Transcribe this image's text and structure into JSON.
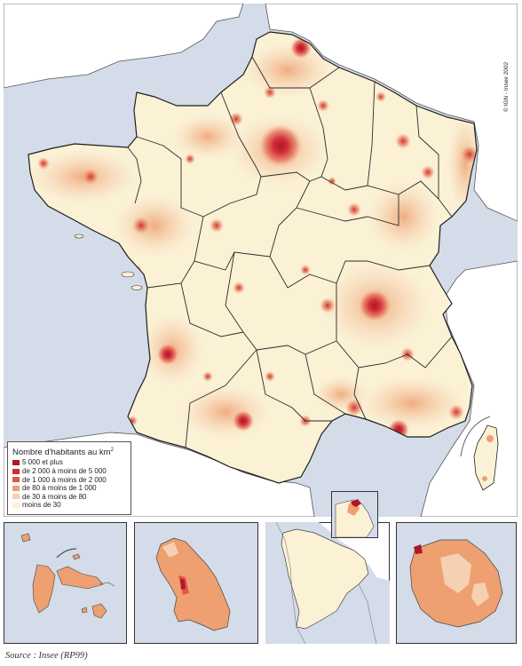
{
  "legend": {
    "title": "Nombre d'habitants au km",
    "title_sup": "2",
    "items": [
      {
        "label": "5 000 et plus",
        "color": "#b0172a"
      },
      {
        "label": "de 2 000 à moins de 5 000",
        "color": "#cf2a35"
      },
      {
        "label": "de 1 000 à moins de 2 000",
        "color": "#e0574a"
      },
      {
        "label": "de 80 à moins de 1 000",
        "color": "#eea071"
      },
      {
        "label": "de 30 à moins de 80",
        "color": "#f6d0b2"
      },
      {
        "label": "moins de 30",
        "color": "#fbf1d5"
      }
    ]
  },
  "copyright": "© IGN - Insee 2002",
  "source": "Source : Insee (RP99)",
  "colors": {
    "sea": "#d3dce8",
    "neighbour_land": "#ffffff",
    "border": "#1e1e1e"
  }
}
